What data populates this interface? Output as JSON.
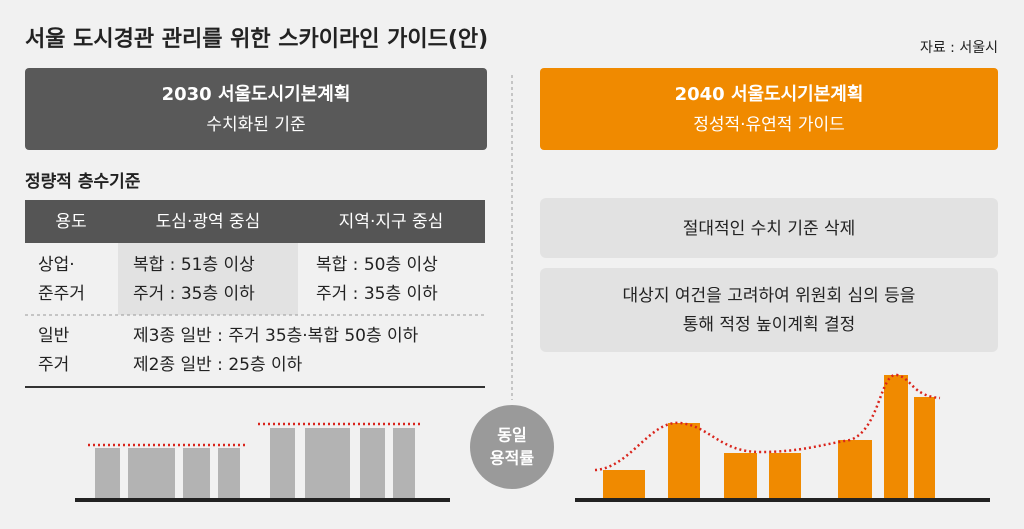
{
  "title": "서울 도시경관 관리를 위한 스카이라인 가이드(안)",
  "source": "자료 : 서울시",
  "left_header": {
    "title": "2030 서울도시기본계획",
    "subtitle": "수치화된 기준"
  },
  "right_header": {
    "title": "2040 서울도시기본계획",
    "subtitle": "정성적·유연적 가이드"
  },
  "section_label": "정량적 층수기준",
  "table": {
    "header": [
      "용도",
      "도심·광역 중심",
      "지역·지구 중심"
    ],
    "rows": [
      [
        [
          "상업·",
          "준주거"
        ],
        [
          "복합 : 51층 이상",
          "주거 : 35층 이하"
        ],
        [
          "복합 : 50층 이상",
          "주거 : 35층 이하"
        ]
      ],
      [
        [
          "일반",
          "주거"
        ],
        [
          "제3종 일반 : 주거 35층·복합 50층 이하",
          "제2종 일반 : 25층 이하"
        ]
      ]
    ]
  },
  "right_notes": [
    [
      "절대적인 수치 기준 삭제"
    ],
    [
      "대상지 여건을 고려하여 위원회 심의 등을",
      "통해 적정 높이계획 결정"
    ]
  ],
  "center_label": [
    "동일",
    "용적률"
  ]
}
